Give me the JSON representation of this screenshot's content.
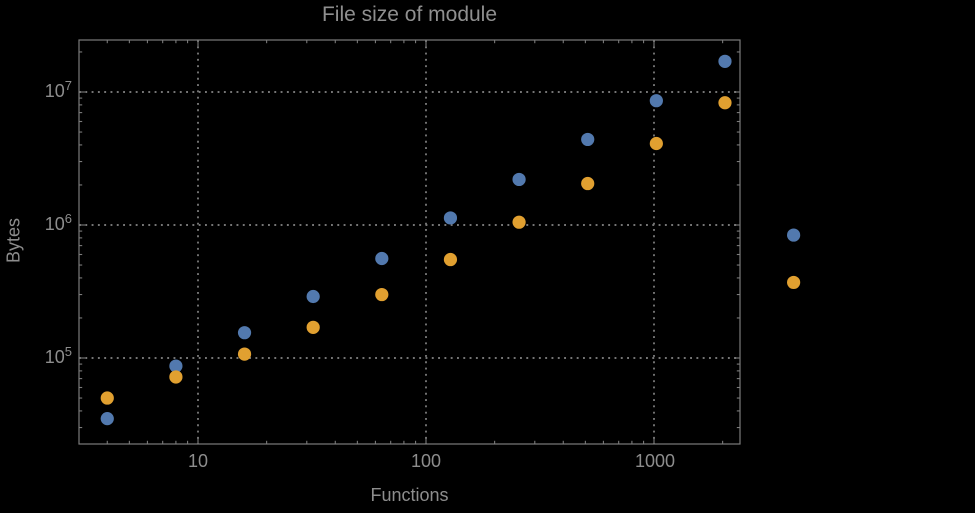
{
  "title": "File size of module",
  "axes": {
    "xlabel": "Functions",
    "ylabel": "Bytes",
    "x_ticks": [
      {
        "label": "10"
      },
      {
        "label": "100"
      },
      {
        "label": "1000"
      }
    ],
    "y_ticks": [
      {
        "base": "10",
        "exp": "7"
      },
      {
        "base": "10",
        "exp": "6"
      },
      {
        "base": "10",
        "exp": "5"
      }
    ]
  },
  "colors": {
    "background": "#000000",
    "frame": "#7b7b7b",
    "grid": "#757575",
    "text": "#8d8d8d",
    "series_blue": "#5279ae",
    "series_orange": "#e1a030"
  },
  "chart_data": {
    "type": "scatter",
    "x_scale": "log",
    "y_scale": "log",
    "title": "File size of module",
    "xlabel": "Functions",
    "ylabel": "Bytes",
    "grid": "dotted gray lines at decade ticks",
    "legend": "none",
    "xlim": [
      3,
      2380
    ],
    "ylim": [
      22500,
      24600000
    ],
    "x_major_ticks": [
      10,
      100,
      1000
    ],
    "y_major_ticks": [
      100000,
      1000000,
      10000000
    ],
    "x": [
      4,
      8,
      16,
      32,
      64,
      128,
      256,
      512,
      1024,
      2048,
      4096
    ],
    "series": [
      {
        "name": "blue-series",
        "color": "#5279ae",
        "values": [
          35000,
          87000,
          155000,
          290000,
          560000,
          1130000,
          2200000,
          4400000,
          8600000,
          17000000,
          840000
        ]
      },
      {
        "name": "orange-series",
        "color": "#e1a030",
        "values": [
          50000,
          72000,
          107000,
          170000,
          300000,
          550000,
          1050000,
          2050000,
          4100000,
          8300000,
          370000
        ]
      }
    ]
  }
}
